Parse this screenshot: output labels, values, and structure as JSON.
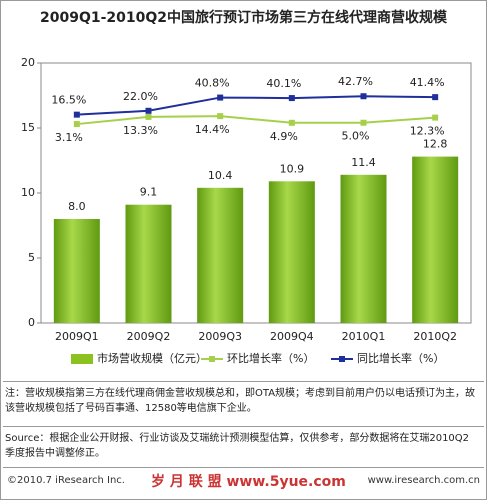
{
  "chart_data": {
    "type": "bar",
    "title": "2009Q1-2010Q2中国旅行预订市场第三方在线代理商营收规模",
    "categories": [
      "2009Q1",
      "2009Q2",
      "2009Q3",
      "2009Q4",
      "2010Q1",
      "2010Q2"
    ],
    "ylim": [
      0,
      20
    ],
    "yticks": [
      0,
      5,
      10,
      15,
      20
    ],
    "y2lim": [
      -280,
      90
    ],
    "series": [
      {
        "name": "市场营收规模（亿元）",
        "type": "bar",
        "color": "#8cc21f",
        "values": [
          8.0,
          9.1,
          10.4,
          10.9,
          11.4,
          12.8
        ],
        "value_labels": [
          "8.0",
          "9.1",
          "10.4",
          "10.9",
          "11.4",
          "12.8"
        ]
      },
      {
        "name": "环比增长率（%）",
        "type": "line",
        "axis": "y2",
        "color": "#a6d04a",
        "values": [
          3.1,
          13.3,
          14.4,
          4.9,
          5.0,
          12.3
        ],
        "value_labels": [
          "3.1%",
          "13.3%",
          "14.4%",
          "4.9%",
          "5.0%",
          "12.3%"
        ]
      },
      {
        "name": "同比增长率（%）",
        "type": "line",
        "axis": "y2",
        "color": "#1f2f9c",
        "values": [
          16.5,
          22.0,
          40.8,
          40.1,
          42.7,
          41.4
        ],
        "value_labels": [
          "16.5%",
          "22.0%",
          "40.8%",
          "40.1%",
          "42.7%",
          "41.4%"
        ]
      }
    ]
  },
  "note": "注：营收规模指第三方在线代理商佣金营收规模总和，即OTA规模；考虑到目前用户仍以电话预订为主，故该营收规模包括了号码百事通、12580等电信旗下企业。",
  "source": "Source：根据企业公开财报、行业访谈及艾瑞统计预测模型估算，仅供参考，部分数据将在艾瑞2010Q2季度报告中调整修正。",
  "footer": {
    "copyright": "©2010.7 iResearch Inc.",
    "watermark": "岁 月 联 盟 www.5yue.com",
    "website": "www.iresearch.com.cn"
  }
}
